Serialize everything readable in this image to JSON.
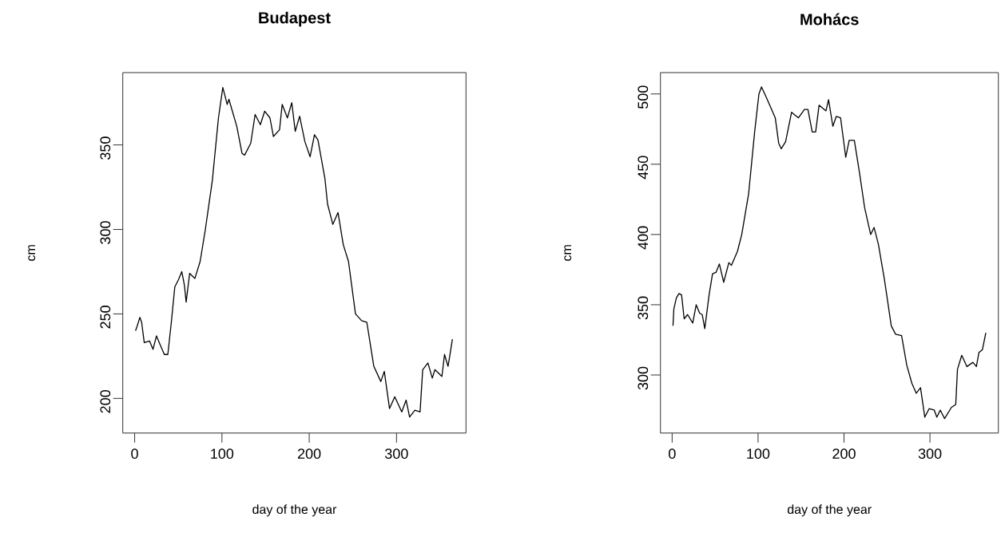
{
  "chart_data": [
    {
      "type": "line",
      "title": "Budapest",
      "xlabel": "day of the year",
      "ylabel": "cm",
      "color": "#000000",
      "xlim": [
        -13.6,
        379.6
      ],
      "ylim": [
        179.5,
        392.8
      ],
      "xticks": [
        0,
        100,
        200,
        300
      ],
      "yticks": [
        200,
        250,
        300,
        350
      ],
      "x": [
        1,
        3,
        6,
        8,
        11,
        17,
        21,
        25,
        29,
        34,
        38,
        42,
        46,
        50,
        54,
        57,
        59,
        63,
        69,
        75,
        81,
        89,
        96,
        101,
        106,
        108,
        117,
        123,
        126,
        133,
        138,
        144,
        149,
        155,
        159,
        166,
        169,
        175,
        180,
        184,
        189,
        195,
        201,
        206,
        210,
        218,
        221,
        227,
        233,
        239,
        245,
        253,
        260,
        266,
        274,
        282,
        286,
        292,
        298,
        306,
        311,
        315,
        321,
        327,
        330,
        336,
        341,
        344,
        352,
        355,
        359,
        361,
        364
      ],
      "values": [
        240,
        243,
        248,
        245,
        233,
        234,
        229,
        237,
        232,
        226,
        226,
        245,
        266,
        270,
        275,
        267,
        257,
        274,
        271,
        281,
        300,
        329,
        366,
        384,
        374,
        377,
        361,
        345,
        344,
        351,
        368,
        362,
        370,
        366,
        355,
        359,
        374,
        366,
        375,
        358,
        367,
        352,
        343,
        356,
        353,
        330,
        315,
        303,
        310,
        291,
        281,
        250,
        246,
        245,
        219,
        210,
        216,
        194,
        201,
        192,
        199,
        189,
        193,
        192,
        217,
        221,
        212,
        217,
        213,
        226,
        219,
        225,
        235
      ]
    },
    {
      "type": "line",
      "title": "Mohács",
      "xlabel": "day of the year",
      "ylabel": "cm",
      "color": "#000000",
      "xlim": [
        -13.6,
        379.6
      ],
      "ylim": [
        258.7,
        515.2
      ],
      "xticks": [
        0,
        100,
        200,
        300
      ],
      "yticks": [
        300,
        350,
        400,
        450,
        500
      ],
      "x": [
        1,
        2,
        5,
        8,
        11,
        14,
        18,
        24,
        28,
        32,
        35,
        38,
        43,
        47,
        51,
        55,
        60,
        66,
        69,
        76,
        81,
        89,
        96,
        101,
        104,
        110,
        120,
        124,
        127,
        132,
        139,
        147,
        154,
        158,
        163,
        167,
        171,
        179,
        182,
        187,
        191,
        196,
        202,
        206,
        212,
        218,
        224,
        231,
        235,
        240,
        247,
        255,
        260,
        267,
        273,
        279,
        284,
        289,
        294,
        299,
        305,
        308,
        312,
        317,
        325,
        330,
        332,
        337,
        343,
        350,
        354,
        357,
        361,
        365
      ],
      "values": [
        335,
        347,
        355,
        358,
        357,
        340,
        343,
        337,
        350,
        344,
        343,
        333,
        357,
        372,
        373,
        379,
        366,
        380,
        378,
        388,
        400,
        429,
        473,
        500,
        505,
        497,
        483,
        465,
        461,
        466,
        487,
        483,
        489,
        489,
        473,
        473,
        492,
        488,
        496,
        477,
        484,
        483,
        455,
        467,
        467,
        444,
        419,
        400,
        405,
        393,
        368,
        335,
        329,
        328,
        307,
        294,
        287,
        291,
        270,
        276,
        275,
        270,
        275,
        269,
        277,
        279,
        304,
        314,
        306,
        309,
        306,
        316,
        318,
        330
      ]
    }
  ]
}
